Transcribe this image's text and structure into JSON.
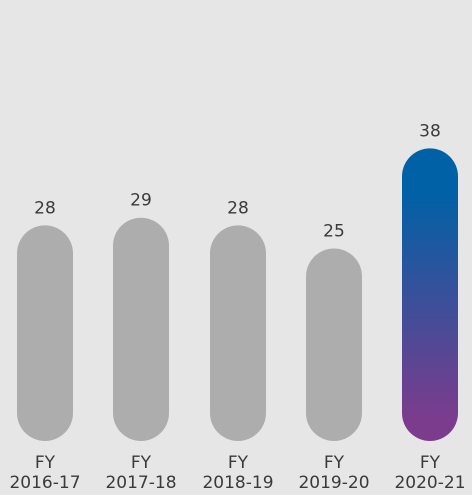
{
  "chart_data": {
    "type": "bar",
    "title": "",
    "xlabel": "",
    "ylabel": "",
    "categories": [
      [
        "FY",
        "2016-17"
      ],
      [
        "FY",
        "2017-18"
      ],
      [
        "FY",
        "2018-19"
      ],
      [
        "FY",
        "2019-20"
      ],
      [
        "FY",
        "2020-21"
      ]
    ],
    "values": [
      28,
      29,
      28,
      25,
      38
    ],
    "value_labels": [
      "28",
      "29",
      "28",
      "25",
      "38"
    ],
    "ylim": [
      0,
      38
    ],
    "grid": false,
    "legend": "none",
    "colors": {
      "background": "#e6e6e6",
      "default_bar": "#adadad",
      "highlight_top": "#0061a6",
      "highlight_bottom": "#7b3c8d",
      "text": "#3a3a3a"
    },
    "highlight_index": 4
  }
}
